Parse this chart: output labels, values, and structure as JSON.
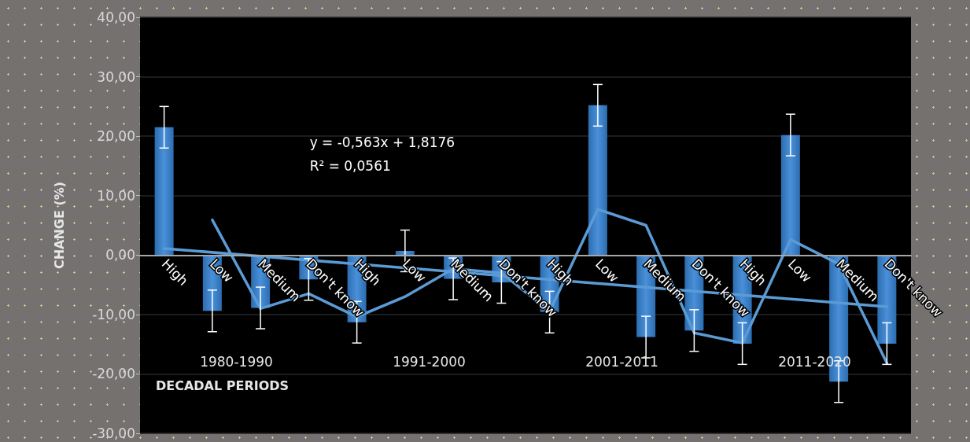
{
  "chart_data": {
    "type": "bar",
    "ylabel": "CHANGE (%)",
    "xlabel": "DECADAL PERIODS",
    "categories": [
      "High",
      "Low",
      "Medium",
      "Don't know",
      "High",
      "Low",
      "Medium",
      "Don't know",
      "High",
      "Low",
      "Medium",
      "Don't know",
      "High",
      "Low",
      "Medium",
      "Don't know"
    ],
    "series": [
      {
        "color": "#4a90d9",
        "values": [
          21.5,
          -9.4,
          -8.9,
          -4.1,
          -11.3,
          0.7,
          -4.0,
          -4.6,
          -9.6,
          25.2,
          -13.8,
          -12.7,
          -14.9,
          20.2,
          -21.3,
          -14.9
        ],
        "errors": [
          3.5,
          3.5,
          3.5,
          3.5,
          3.5,
          3.5,
          3.5,
          3.5,
          3.5,
          3.5,
          3.5,
          3.5,
          3.5,
          3.5,
          3.5,
          3.5
        ]
      },
      {
        "type": "line",
        "color": "#5b9bd5",
        "values": [
          null,
          5.9,
          -9.0,
          -6.5,
          -10.4,
          -7.0,
          -2.3,
          -3.0,
          -9.5,
          7.7,
          5.0,
          -13.1,
          -14.8,
          2.6,
          -1.5,
          -18.2
        ]
      },
      {
        "type": "line",
        "color": "#5b9bd5",
        "values": [
          1.1,
          null,
          null,
          null,
          null,
          null,
          null,
          null,
          null,
          null,
          null,
          null,
          null,
          null,
          null,
          -8.7
        ]
      }
    ],
    "annotations": [
      "y = -0,563x + 1,8176",
      "R² = 0,0561",
      "1980-1990",
      "1991-2000",
      "2001-2011",
      "2011-2020"
    ],
    "ylim": [
      -30,
      40
    ],
    "yticks": [
      {
        "value": -30,
        "label": "-30,00"
      },
      {
        "value": -20,
        "label": "-20,00"
      },
      {
        "value": -10,
        "label": "-10,00"
      },
      {
        "value": 0,
        "label": "0,00"
      },
      {
        "value": 10,
        "label": "10,00"
      },
      {
        "value": 20,
        "label": "20,00"
      },
      {
        "value": 30,
        "label": "30,00"
      },
      {
        "value": 40,
        "label": "40,00"
      }
    ],
    "grid": "y",
    "marker": "none",
    "line_style": "solid"
  }
}
